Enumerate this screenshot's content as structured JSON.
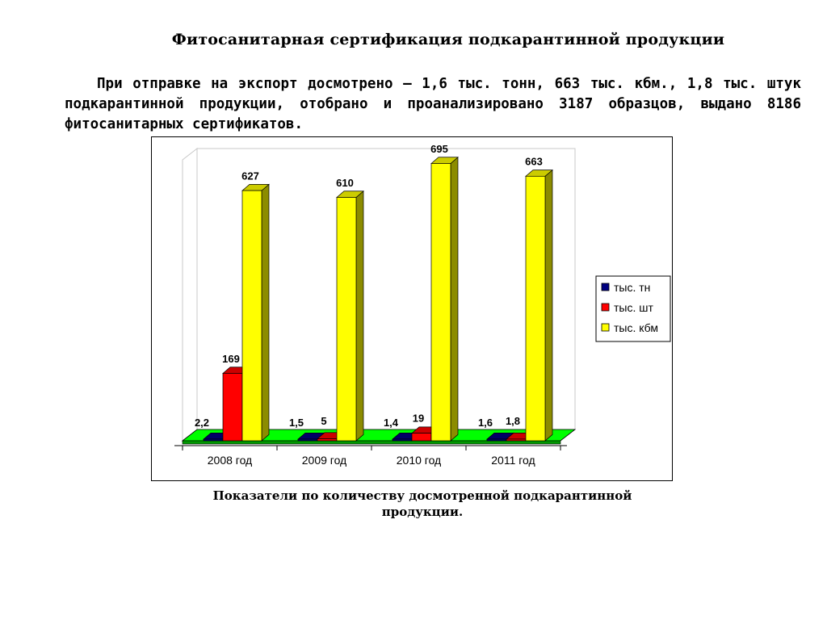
{
  "header": {
    "title": "Фитосанитарная сертификация подкарантинной продукции",
    "intro": "При отправке на экспорт досмотрено – 1,6 тыс. тонн, 663 тыс. кбм., 1,8 тыс. штук подкарантинной продукции, отобрано и проанализировано 3187 образцов, выдано 8186 фитосанитарных сертификатов."
  },
  "caption": {
    "line1": "Показатели по количеству досмотренной подкарантинной",
    "line2": "продукции."
  },
  "chart_data": {
    "type": "bar",
    "title": "",
    "xlabel": "",
    "ylabel": "",
    "categories": [
      "2008 год",
      "2009 год",
      "2010 год",
      "2011 год"
    ],
    "ylim": [
      0,
      700
    ],
    "grid": false,
    "legend_position": "right",
    "series": [
      {
        "name": "тыс. тн",
        "color": "#000080",
        "values": [
          2.2,
          1.5,
          1.4,
          1.6
        ],
        "labels": [
          "2,2",
          "1,5",
          "1,4",
          "1,6"
        ]
      },
      {
        "name": "тыс. шт",
        "color": "#FF0000",
        "values": [
          169,
          5,
          19,
          1.8
        ],
        "labels": [
          "169",
          "5",
          "19",
          "1,8"
        ]
      },
      {
        "name": "тыс. кбм",
        "color": "#FFFF00",
        "values": [
          627,
          610,
          695,
          663
        ],
        "labels": [
          "627",
          "610",
          "695",
          "663"
        ]
      }
    ],
    "floor_color": "#00FF00"
  }
}
